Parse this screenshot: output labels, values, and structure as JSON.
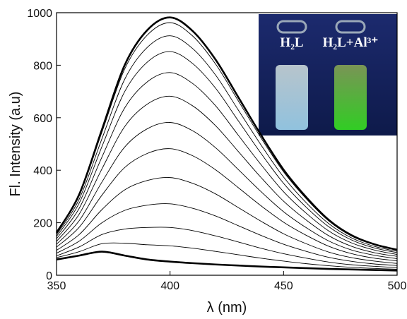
{
  "chart_data": {
    "type": "line",
    "xlabel": "λ (nm)",
    "ylabel": "Fl. Intensity (a.u)",
    "x": [
      350,
      360,
      370,
      380,
      390,
      400,
      410,
      420,
      430,
      440,
      450,
      460,
      470,
      480,
      490,
      500
    ],
    "xlim": [
      350,
      500
    ],
    "xticks": [
      350,
      400,
      450,
      500
    ],
    "ylim": [
      0,
      1000
    ],
    "yticks": [
      0,
      200,
      400,
      600,
      800,
      1000
    ],
    "inset_labels": [
      "H₂L",
      "H₂L+Al³⁺"
    ],
    "series": [
      {
        "color": "#000000",
        "values": [
          60,
          75,
          90,
          75,
          60,
          52,
          46,
          41,
          37,
          33,
          30,
          27,
          24,
          22,
          20,
          18
        ]
      },
      {
        "color": "#000000",
        "values": [
          67,
          90,
          120,
          122,
          116,
          112,
          103,
          91,
          78,
          65,
          54,
          44,
          36,
          30,
          26,
          23
        ]
      },
      {
        "color": "#000000",
        "values": [
          74,
          108,
          155,
          176,
          182,
          182,
          170,
          150,
          127,
          103,
          82,
          65,
          50,
          40,
          34,
          29
        ]
      },
      {
        "color": "#000000",
        "values": [
          84,
          130,
          200,
          247,
          267,
          272,
          255,
          226,
          189,
          152,
          118,
          91,
          68,
          53,
          43,
          37
        ]
      },
      {
        "color": "#000000",
        "values": [
          95,
          155,
          250,
          325,
          361,
          372,
          350,
          310,
          258,
          206,
          158,
          120,
          88,
          67,
          54,
          45
        ]
      },
      {
        "color": "#000000",
        "values": [
          107,
          183,
          305,
          410,
          464,
          482,
          455,
          402,
          334,
          265,
          202,
          152,
          110,
          82,
          65,
          55
        ]
      },
      {
        "color": "#000000",
        "values": [
          118,
          208,
          355,
          488,
          558,
          582,
          550,
          486,
          403,
          319,
          242,
          181,
          130,
          96,
          76,
          63
        ]
      },
      {
        "color": "#000000",
        "values": [
          129,
          233,
          405,
          566,
          652,
          682,
          645,
          570,
          472,
          373,
          282,
          210,
          150,
          110,
          86,
          72
        ]
      },
      {
        "color": "#000000",
        "values": [
          139,
          255,
          450,
          637,
          737,
          772,
          730,
          646,
          534,
          422,
          318,
          236,
          168,
          123,
          96,
          79
        ]
      },
      {
        "color": "#000000",
        "values": [
          148,
          275,
          490,
          699,
          812,
          852,
          806,
          713,
          589,
          465,
          350,
          259,
          184,
          134,
          104,
          86
        ]
      },
      {
        "color": "#000000",
        "values": [
          155,
          290,
          520,
          746,
          868,
          912,
          863,
          763,
          630,
          497,
          374,
          276,
          196,
          142,
          110,
          91
        ]
      },
      {
        "color": "#000000",
        "values": [
          160,
          303,
          545,
          785,
          915,
          962,
          911,
          805,
          665,
          524,
          394,
          291,
          206,
          149,
          116,
          95
        ]
      },
      {
        "color": "#000000",
        "values": [
          162,
          308,
          555,
          800,
          934,
          982,
          930,
          822,
          679,
          535,
          402,
          297,
          210,
          152,
          118,
          97
        ]
      }
    ]
  }
}
